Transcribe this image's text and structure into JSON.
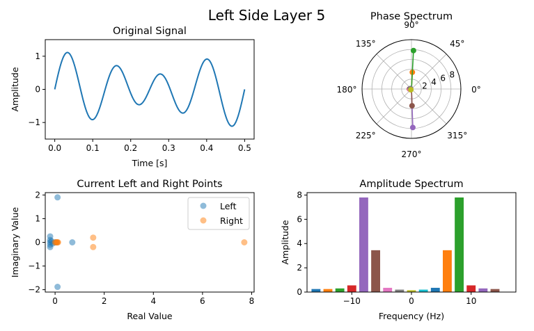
{
  "figure": {
    "suptitle": "Left Side Layer 5"
  },
  "chart_data": [
    {
      "type": "line",
      "title": "Original Signal",
      "xlabel": "Time [s]",
      "ylabel": "Amplitude",
      "xlim": [
        -0.025,
        0.525
      ],
      "ylim": [
        -1.5,
        1.5
      ],
      "xticks": [
        0.0,
        0.1,
        0.2,
        0.3,
        0.4,
        0.5
      ],
      "xtick_labels": [
        "0.0",
        "0.1",
        "0.2",
        "0.3",
        "0.4",
        "0.5"
      ],
      "yticks": [
        -1,
        0,
        1
      ],
      "ytick_labels": [
        "−1",
        "0",
        "1"
      ],
      "color": "#1f77b4",
      "signal_components": [
        {
          "frequency_hz": 8,
          "amplitude": 0.78
        },
        {
          "frequency_hz": 6,
          "amplitude": 0.34
        },
        {
          "frequency_hz": 2,
          "amplitude": 0.03
        }
      ],
      "x_range": [
        0.0,
        0.5
      ],
      "n_samples": 500
    },
    {
      "type": "polar",
      "title": "Phase Spectrum",
      "rmax": 10,
      "rticks": [
        2,
        4,
        6,
        8
      ],
      "angle_labels": [
        "0°",
        "45°",
        "90°",
        "135°",
        "180°",
        "225°",
        "270°",
        "315°"
      ],
      "angles_deg": [
        0,
        45,
        90,
        135,
        180,
        225,
        270,
        315
      ],
      "series": [
        {
          "color": "#ff7f0e",
          "angle_deg": 87,
          "r": 3.4
        },
        {
          "color": "#2ca02c",
          "angle_deg": 87,
          "r": 7.8
        },
        {
          "color": "#9467bd",
          "angle_deg": 272,
          "r": 7.8
        },
        {
          "color": "#8c564b",
          "angle_deg": 272,
          "r": 3.4
        },
        {
          "color": "#d62728",
          "angle_deg": 180,
          "r": 0.4
        },
        {
          "color": "#1f77b4",
          "angle_deg": 175,
          "r": 0.3
        },
        {
          "color": "#e377c2",
          "angle_deg": 200,
          "r": 0.3
        },
        {
          "color": "#7f7f7f",
          "angle_deg": 150,
          "r": 0.2
        },
        {
          "color": "#bcbd22",
          "angle_deg": 230,
          "r": 0.2
        }
      ]
    },
    {
      "type": "scatter",
      "title": "Current Left and Right Points",
      "xlabel": "Real Value",
      "ylabel": "Imaginary Value",
      "xlim": [
        -0.4,
        8.1
      ],
      "ylim": [
        -2.1,
        2.1
      ],
      "xticks": [
        0,
        2,
        4,
        6,
        8
      ],
      "xtick_labels": [
        "0",
        "2",
        "4",
        "6",
        "8"
      ],
      "yticks": [
        -2,
        -1,
        0,
        1,
        2
      ],
      "ytick_labels": [
        "−2",
        "−1",
        "0",
        "1",
        "2"
      ],
      "legend_position": "upper right",
      "series": [
        {
          "name": "Left",
          "color": "#1f77b4",
          "points": [
            [
              0.1,
              1.9
            ],
            [
              0.1,
              -1.88
            ],
            [
              0.7,
              0.0
            ],
            [
              -0.2,
              0.25
            ],
            [
              -0.2,
              0.1
            ],
            [
              -0.2,
              0.0
            ],
            [
              -0.2,
              -0.1
            ],
            [
              -0.2,
              -0.2
            ],
            [
              -0.15,
              0.05
            ],
            [
              0.0,
              0.0
            ],
            [
              0.05,
              0.0
            ],
            [
              -0.1,
              -0.05
            ]
          ]
        },
        {
          "name": "Right",
          "color": "#ff7f0e",
          "points": [
            [
              7.7,
              0.0
            ],
            [
              1.55,
              0.2
            ],
            [
              1.55,
              -0.2
            ],
            [
              0.0,
              0.0
            ],
            [
              0.05,
              0.0
            ],
            [
              0.08,
              0.0
            ],
            [
              0.1,
              0.0
            ],
            [
              0.12,
              0.0
            ]
          ]
        }
      ]
    },
    {
      "type": "bar",
      "title": "Amplitude Spectrum",
      "xlabel": "Frequency (Hz)",
      "ylabel": "Amplitude",
      "xlim": [
        -17.5,
        17.5
      ],
      "ylim": [
        0,
        8.2
      ],
      "xticks": [
        -10,
        0,
        10
      ],
      "xtick_labels": [
        "−10",
        "0",
        "10"
      ],
      "yticks": [
        0,
        2,
        4,
        6,
        8
      ],
      "ytick_labels": [
        "0",
        "2",
        "4",
        "6",
        "8"
      ],
      "bar_width": 1.5,
      "bars": [
        {
          "x": -16,
          "value": 0.25,
          "color": "#1f77b4"
        },
        {
          "x": -14,
          "value": 0.25,
          "color": "#ff7f0e"
        },
        {
          "x": -12,
          "value": 0.3,
          "color": "#2ca02c"
        },
        {
          "x": -10,
          "value": 0.55,
          "color": "#d62728"
        },
        {
          "x": -8,
          "value": 7.8,
          "color": "#9467bd"
        },
        {
          "x": -6,
          "value": 3.45,
          "color": "#8c564b"
        },
        {
          "x": -4,
          "value": 0.35,
          "color": "#e377c2"
        },
        {
          "x": -2,
          "value": 0.2,
          "color": "#7f7f7f"
        },
        {
          "x": 0,
          "value": 0.15,
          "color": "#bcbd22"
        },
        {
          "x": 2,
          "value": 0.2,
          "color": "#17becf"
        },
        {
          "x": 4,
          "value": 0.35,
          "color": "#1f77b4"
        },
        {
          "x": 6,
          "value": 3.45,
          "color": "#ff7f0e"
        },
        {
          "x": 8,
          "value": 7.8,
          "color": "#2ca02c"
        },
        {
          "x": 10,
          "value": 0.55,
          "color": "#d62728"
        },
        {
          "x": 12,
          "value": 0.3,
          "color": "#9467bd"
        },
        {
          "x": 14,
          "value": 0.25,
          "color": "#8c564b"
        }
      ]
    }
  ]
}
